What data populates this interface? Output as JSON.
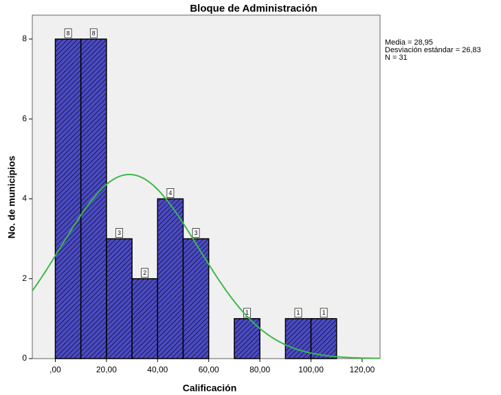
{
  "chart_data": {
    "type": "histogram",
    "title": "Bloque de Administración",
    "x_label": "Calificación",
    "y_label": "No. de municipios",
    "bins": [
      0,
      10,
      20,
      30,
      40,
      50,
      60,
      70,
      80,
      90,
      100,
      110
    ],
    "values": [
      8,
      8,
      3,
      2,
      4,
      3,
      0,
      1,
      0,
      1,
      1
    ],
    "color": "#4b4bc6",
    "curve_color": "#3cb84a",
    "mean": 28.95,
    "sd": 26.83,
    "n": 31,
    "annotations": [
      "Media = 28,95",
      "Desviación estándar = 26,83",
      "N = 31"
    ],
    "xlim": [
      -9,
      127
    ],
    "ylim": [
      0,
      8.6
    ],
    "xticks": [
      {
        "value": 0,
        "label": ",00"
      },
      {
        "value": 20,
        "label": "20,00"
      },
      {
        "value": 40,
        "label": "40,00"
      },
      {
        "value": 60,
        "label": "60,00"
      },
      {
        "value": 80,
        "label": "80,00"
      },
      {
        "value": 100,
        "label": "100,00"
      },
      {
        "value": 120,
        "label": "120,00"
      }
    ],
    "yticks": [
      0,
      2,
      4,
      6,
      8
    ]
  }
}
